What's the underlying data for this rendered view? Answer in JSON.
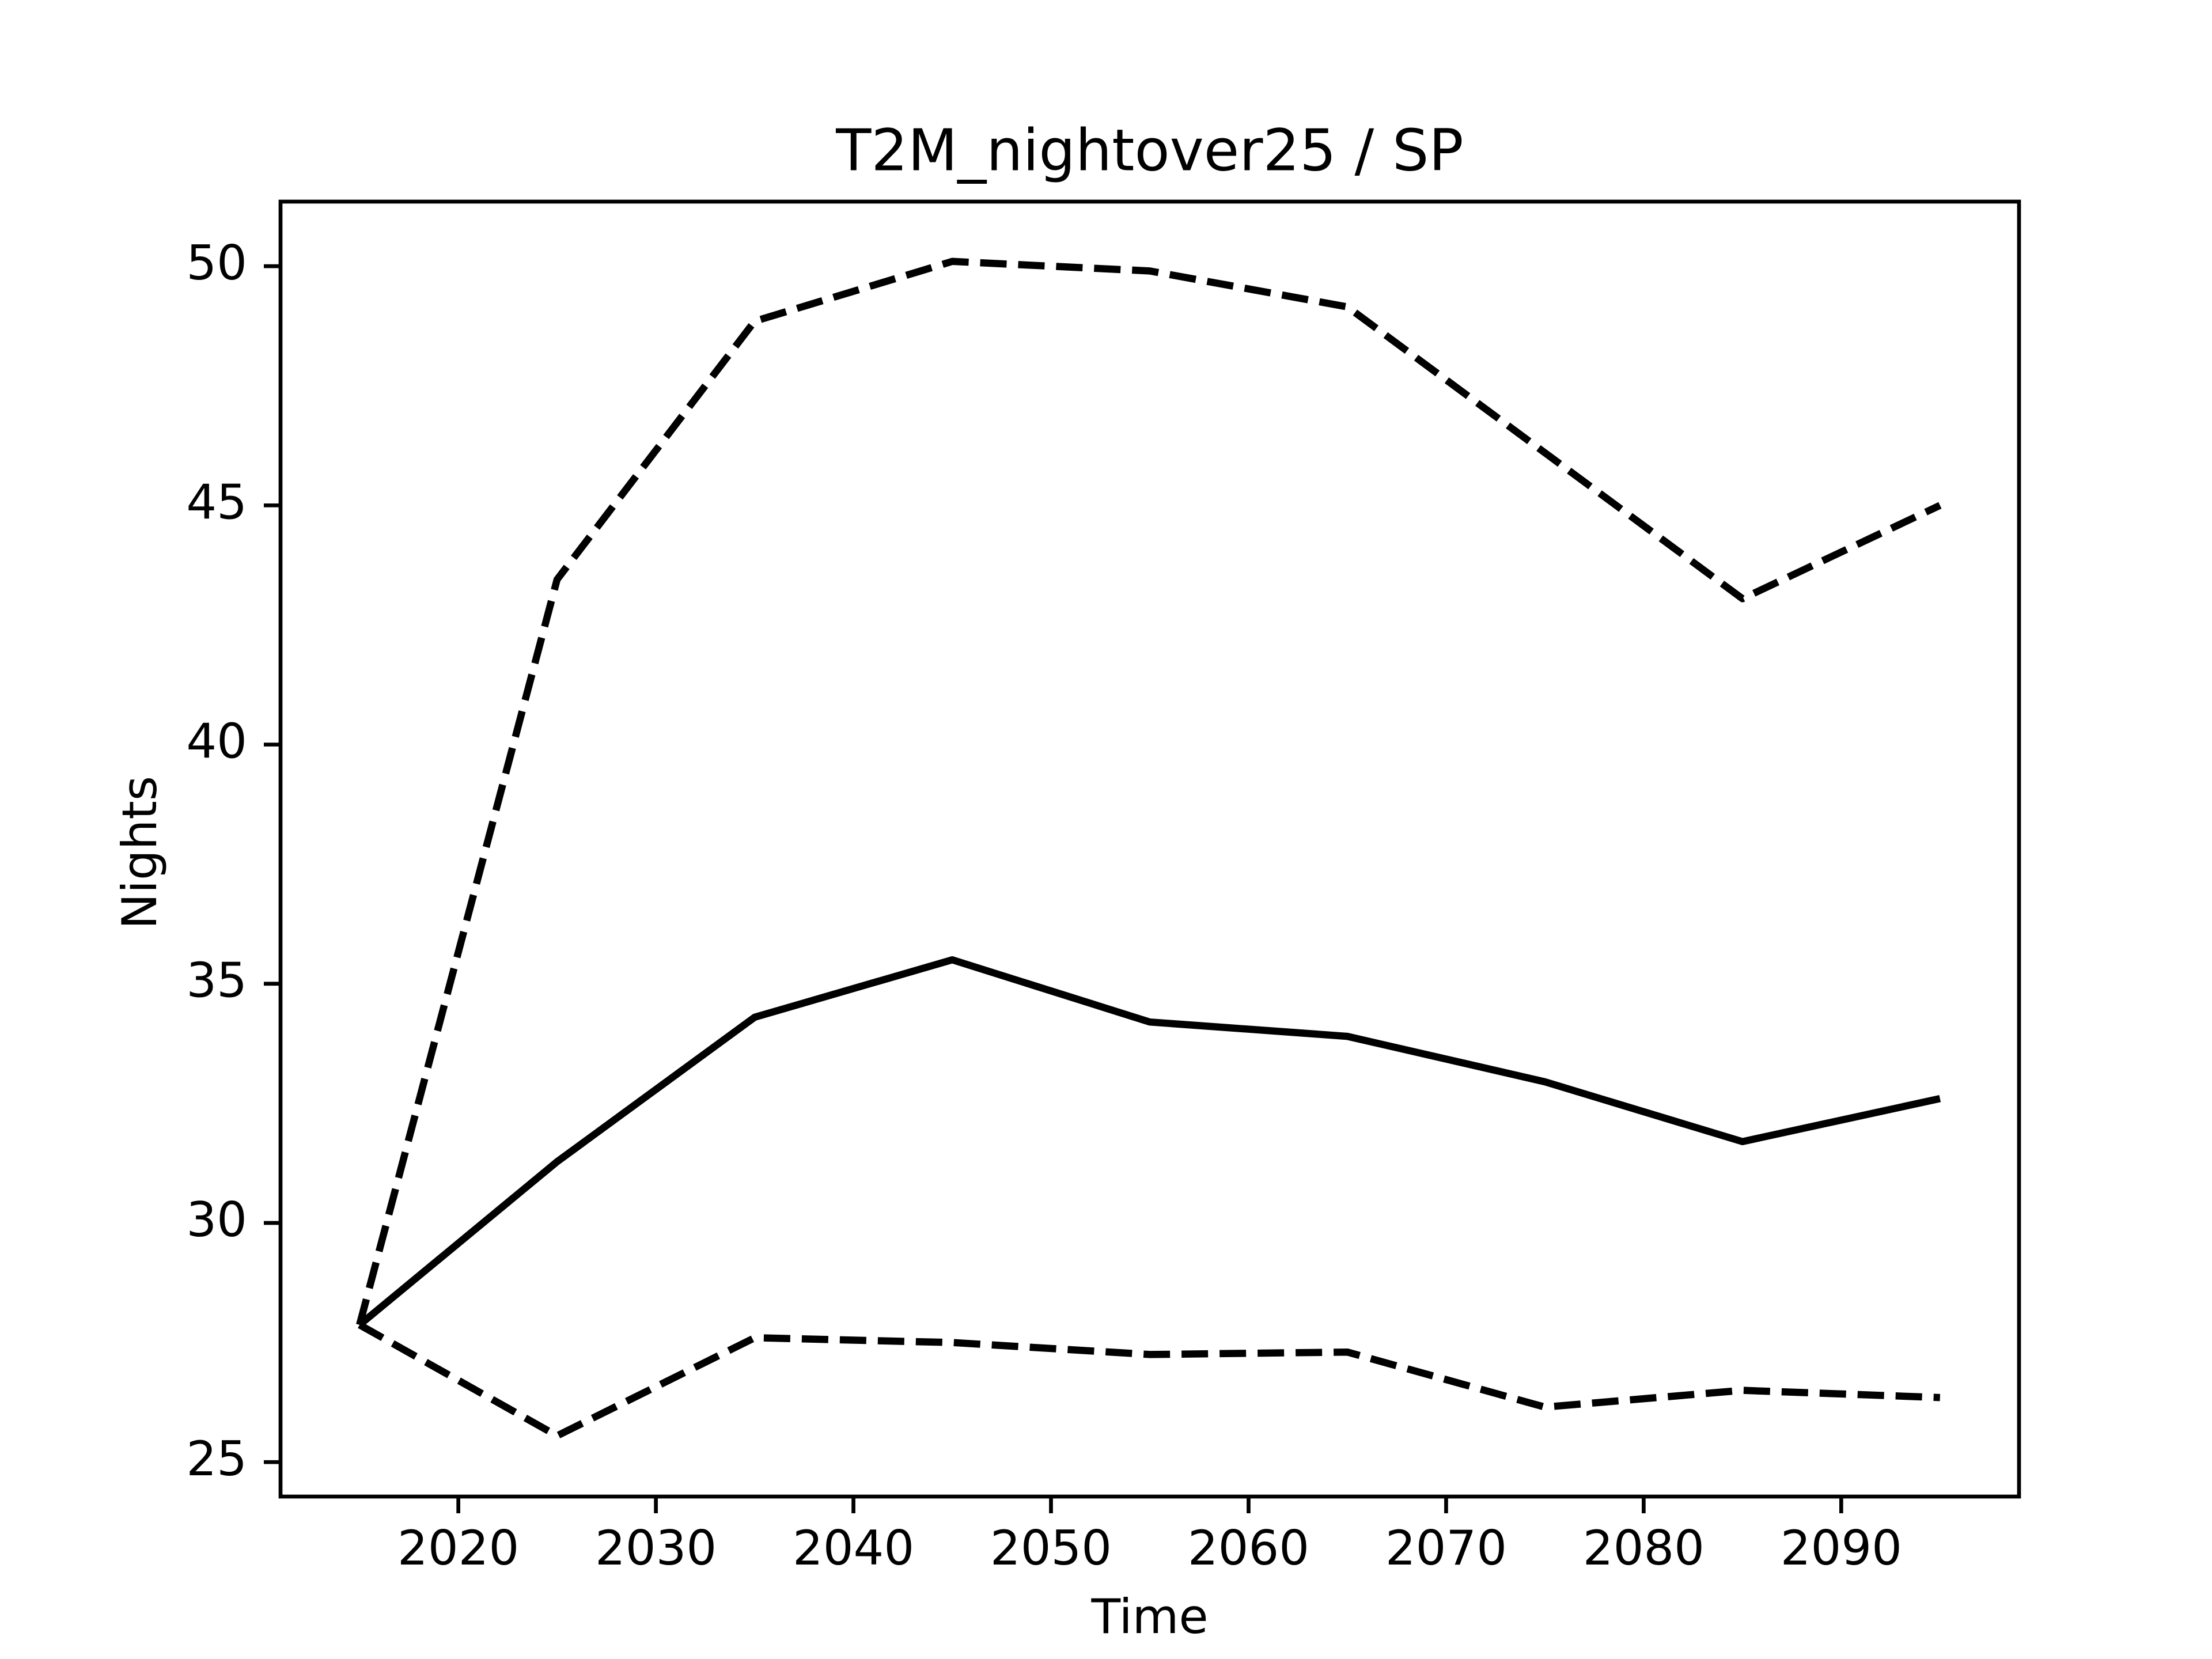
{
  "chart_data": {
    "type": "line",
    "title": "T2M_nightover25 / SP",
    "xlabel": "Time",
    "ylabel": "Nights",
    "x": [
      2015,
      2025,
      2035,
      2045,
      2055,
      2065,
      2075,
      2085,
      2095
    ],
    "series": [
      {
        "color": "#000000",
        "linestyle": "solid",
        "values": [
          27.87,
          31.28,
          34.3,
          35.5,
          34.2,
          33.9,
          32.95,
          31.7,
          32.6
        ]
      },
      {
        "color": "#000000",
        "linestyle": "dashed",
        "values": [
          27.87,
          43.45,
          48.85,
          50.1,
          49.9,
          49.15,
          46.1,
          43.05,
          45.0
        ]
      },
      {
        "color": "#000000",
        "linestyle": "dashed",
        "values": [
          27.87,
          25.55,
          27.6,
          27.5,
          27.25,
          27.3,
          26.15,
          26.5,
          26.35
        ]
      }
    ],
    "xlim": [
      2011,
      2099
    ],
    "xticks": [
      2020,
      2030,
      2040,
      2050,
      2060,
      2070,
      2080,
      2090
    ],
    "ylim": [
      24.28,
      51.35
    ],
    "yticks": [
      25,
      30,
      35,
      40,
      45,
      50
    ],
    "grid": false
  }
}
